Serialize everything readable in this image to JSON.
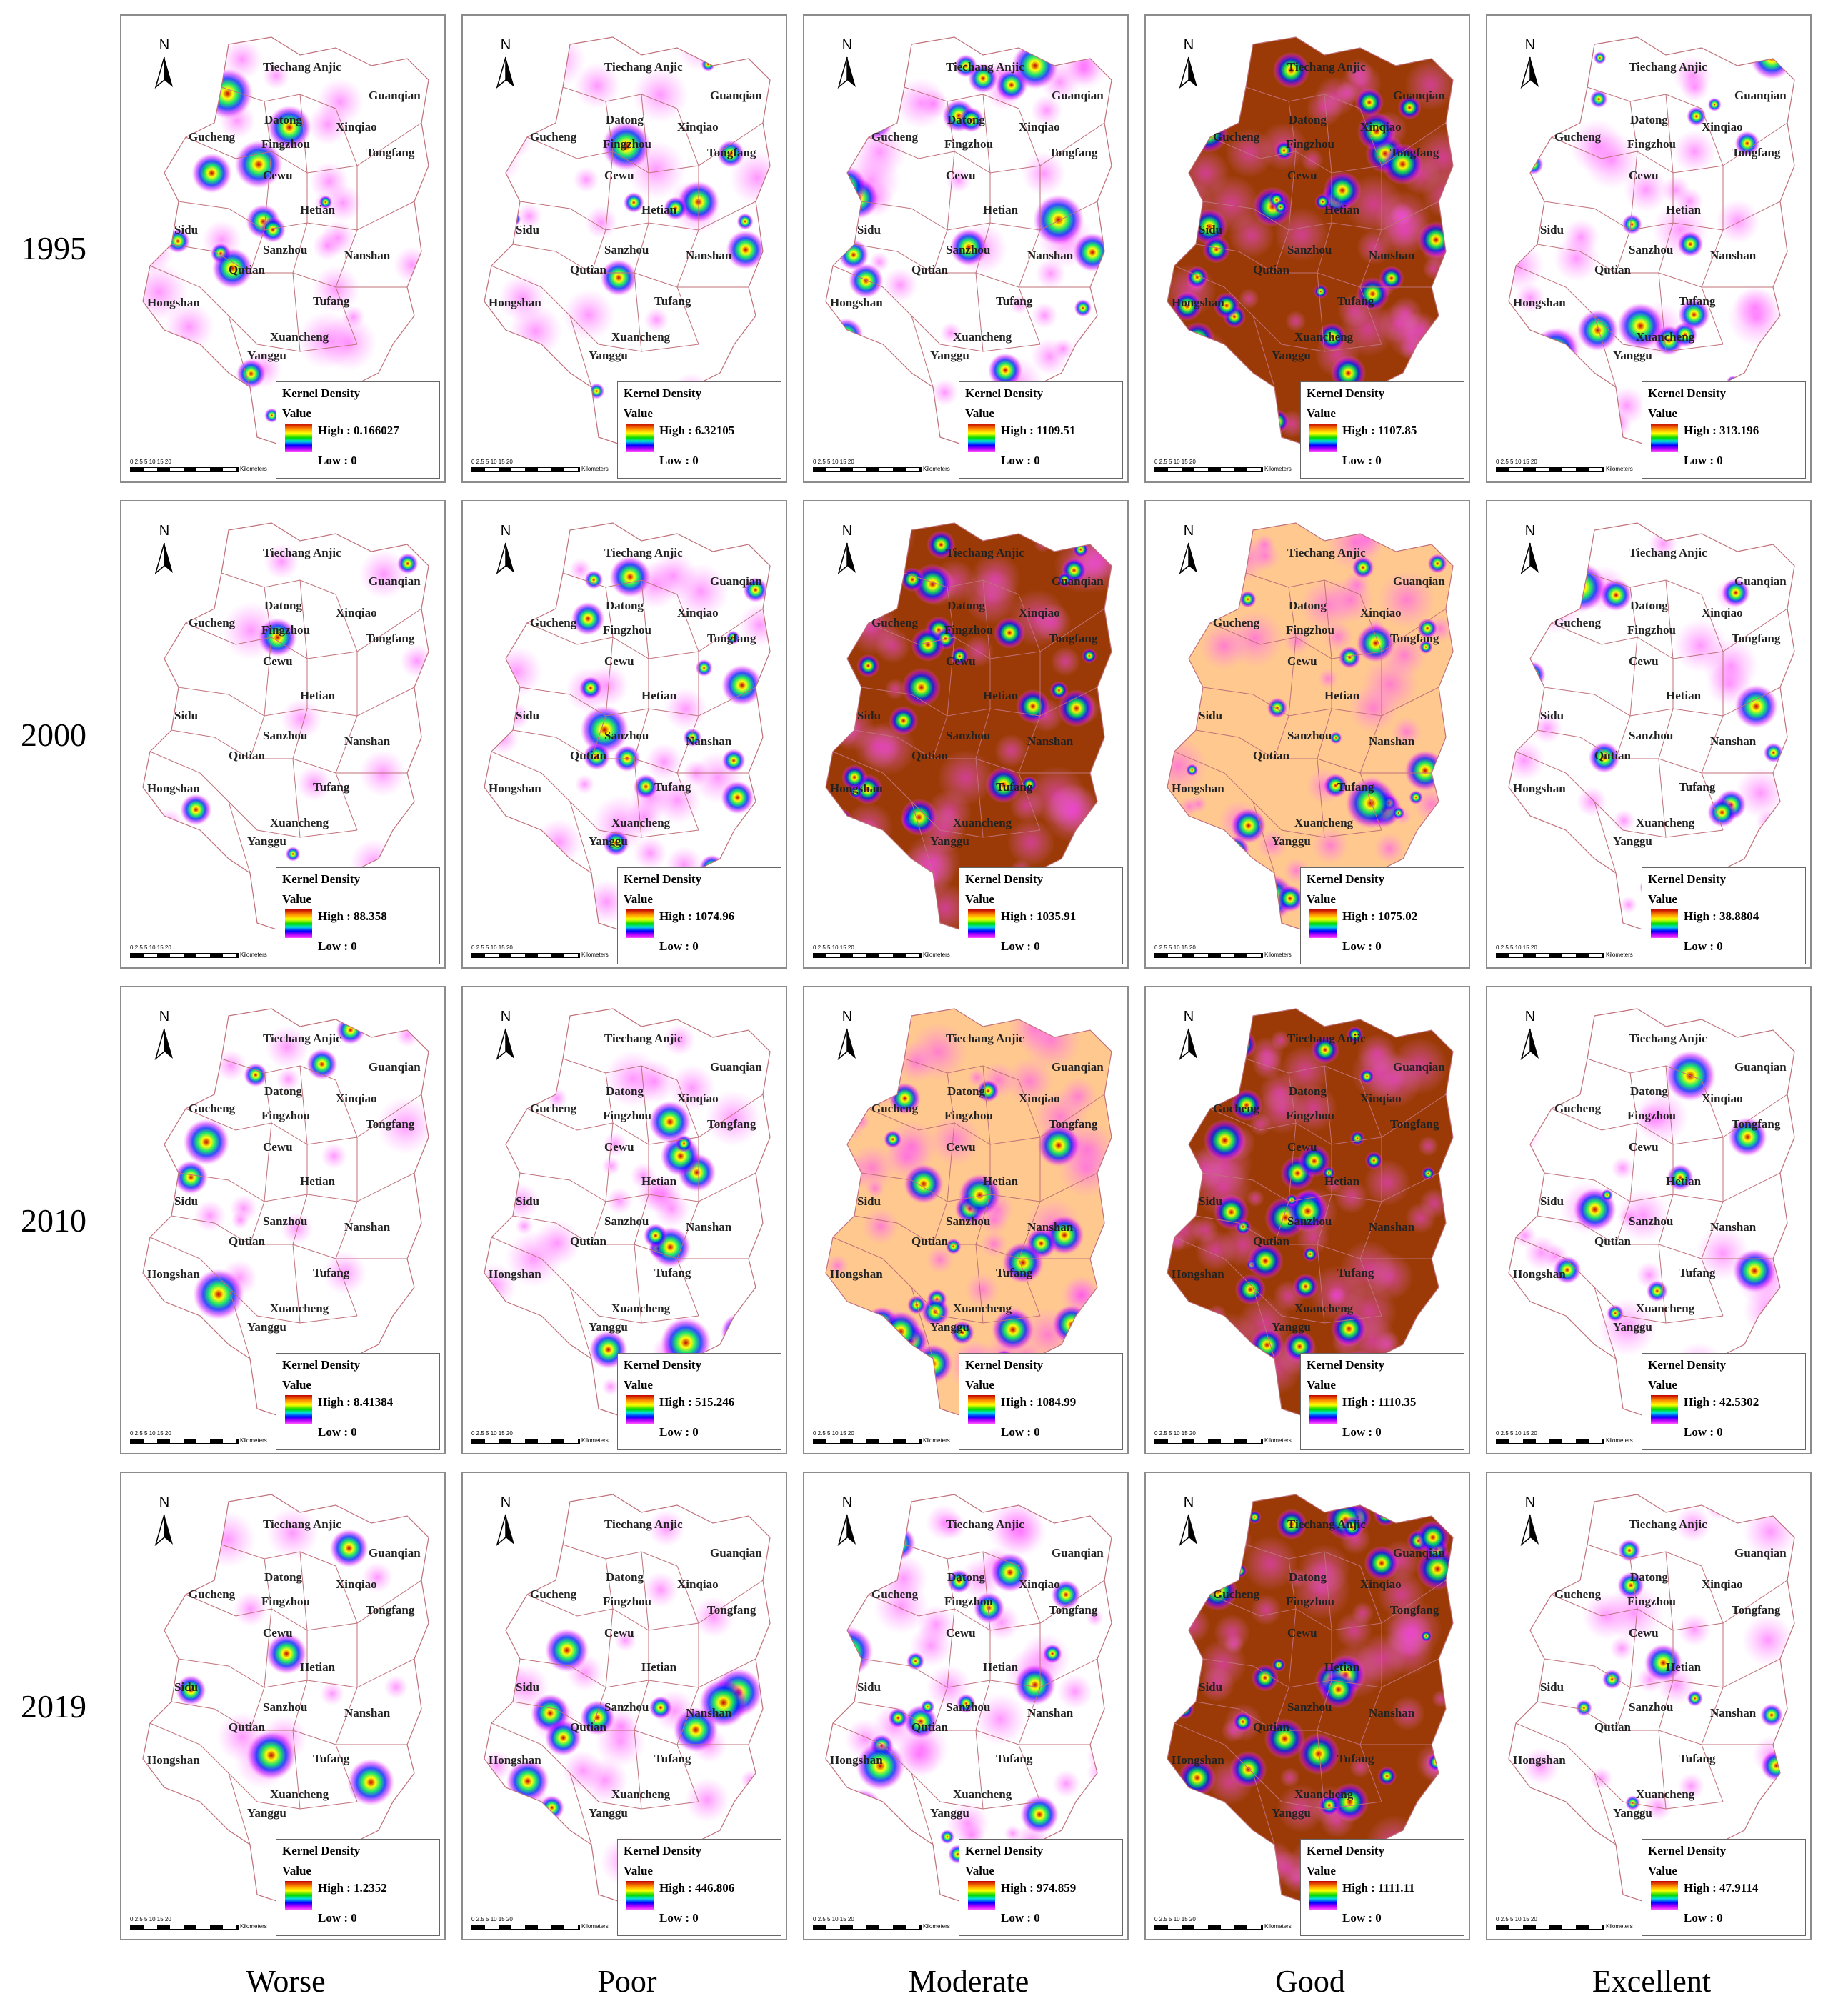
{
  "row_labels": [
    "1995",
    "2000",
    "2010",
    "2019"
  ],
  "col_labels": [
    "Worse",
    "Poor",
    "Moderate",
    "Good",
    "Excellent"
  ],
  "north_label": "N",
  "legend": {
    "title": "Kernel Density",
    "subtitle": "Value",
    "low_label": "Low : 0"
  },
  "scalebar": {
    "ticks": "0 2.5 5      10      15      20",
    "unit": "Kilometers"
  },
  "places": [
    "Tiechang",
    "Anjic",
    "Guanqian",
    "Datong",
    "Xinqiao",
    "Gucheng",
    "Fingzhou",
    "Tongfang",
    "Cewu",
    "Hetian",
    "Sidu",
    "Sanzhou",
    "Nanshan",
    "Qutian",
    "Hongshan",
    "Tufang",
    "Xuancheng",
    "Yanggu"
  ],
  "panels": [
    {
      "year": "1995",
      "category": "Worse",
      "high": "High : 0.166027",
      "intensity": 0.35
    },
    {
      "year": "1995",
      "category": "Poor",
      "high": "High : 6.32105",
      "intensity": 0.3
    },
    {
      "year": "1995",
      "category": "Moderate",
      "high": "High : 1109.51",
      "intensity": 0.55
    },
    {
      "year": "1995",
      "category": "Good",
      "high": "High : 1107.85",
      "intensity": 1.0
    },
    {
      "year": "1995",
      "category": "Excellent",
      "high": "High : 313.196",
      "intensity": 0.45
    },
    {
      "year": "2000",
      "category": "Worse",
      "high": "High : 88.358",
      "intensity": 0.05
    },
    {
      "year": "2000",
      "category": "Poor",
      "high": "High : 1074.96",
      "intensity": 0.5
    },
    {
      "year": "2000",
      "category": "Moderate",
      "high": "High : 1035.91",
      "intensity": 0.95
    },
    {
      "year": "2000",
      "category": "Good",
      "high": "High : 1075.02",
      "intensity": 0.75
    },
    {
      "year": "2000",
      "category": "Excellent",
      "high": "High : 38.8804",
      "intensity": 0.3
    },
    {
      "year": "2010",
      "category": "Worse",
      "high": "High : 8.41384",
      "intensity": 0.1
    },
    {
      "year": "2010",
      "category": "Poor",
      "high": "High : 515.246",
      "intensity": 0.35
    },
    {
      "year": "2010",
      "category": "Moderate",
      "high": "High : 1084.99",
      "intensity": 0.85
    },
    {
      "year": "2010",
      "category": "Good",
      "high": "High : 1110.35",
      "intensity": 0.95
    },
    {
      "year": "2010",
      "category": "Excellent",
      "high": "High : 42.5302",
      "intensity": 0.25
    },
    {
      "year": "2019",
      "category": "Worse",
      "high": "High : 1.2352",
      "intensity": 0.1
    },
    {
      "year": "2019",
      "category": "Poor",
      "high": "High : 446.806",
      "intensity": 0.3
    },
    {
      "year": "2019",
      "category": "Moderate",
      "high": "High : 974.859",
      "intensity": 0.6
    },
    {
      "year": "2019",
      "category": "Good",
      "high": "High : 1111.11",
      "intensity": 1.0
    },
    {
      "year": "2019",
      "category": "Excellent",
      "high": "High : 47.9114",
      "intensity": 0.3
    }
  ],
  "colors": {
    "boundary": "#c0707a",
    "ramp": [
      "#ff50ff",
      "#b000ff",
      "#0000ff",
      "#00e0e0",
      "#00d800",
      "#ffff00",
      "#ff8c00",
      "#c00000",
      "#8b2500"
    ]
  }
}
